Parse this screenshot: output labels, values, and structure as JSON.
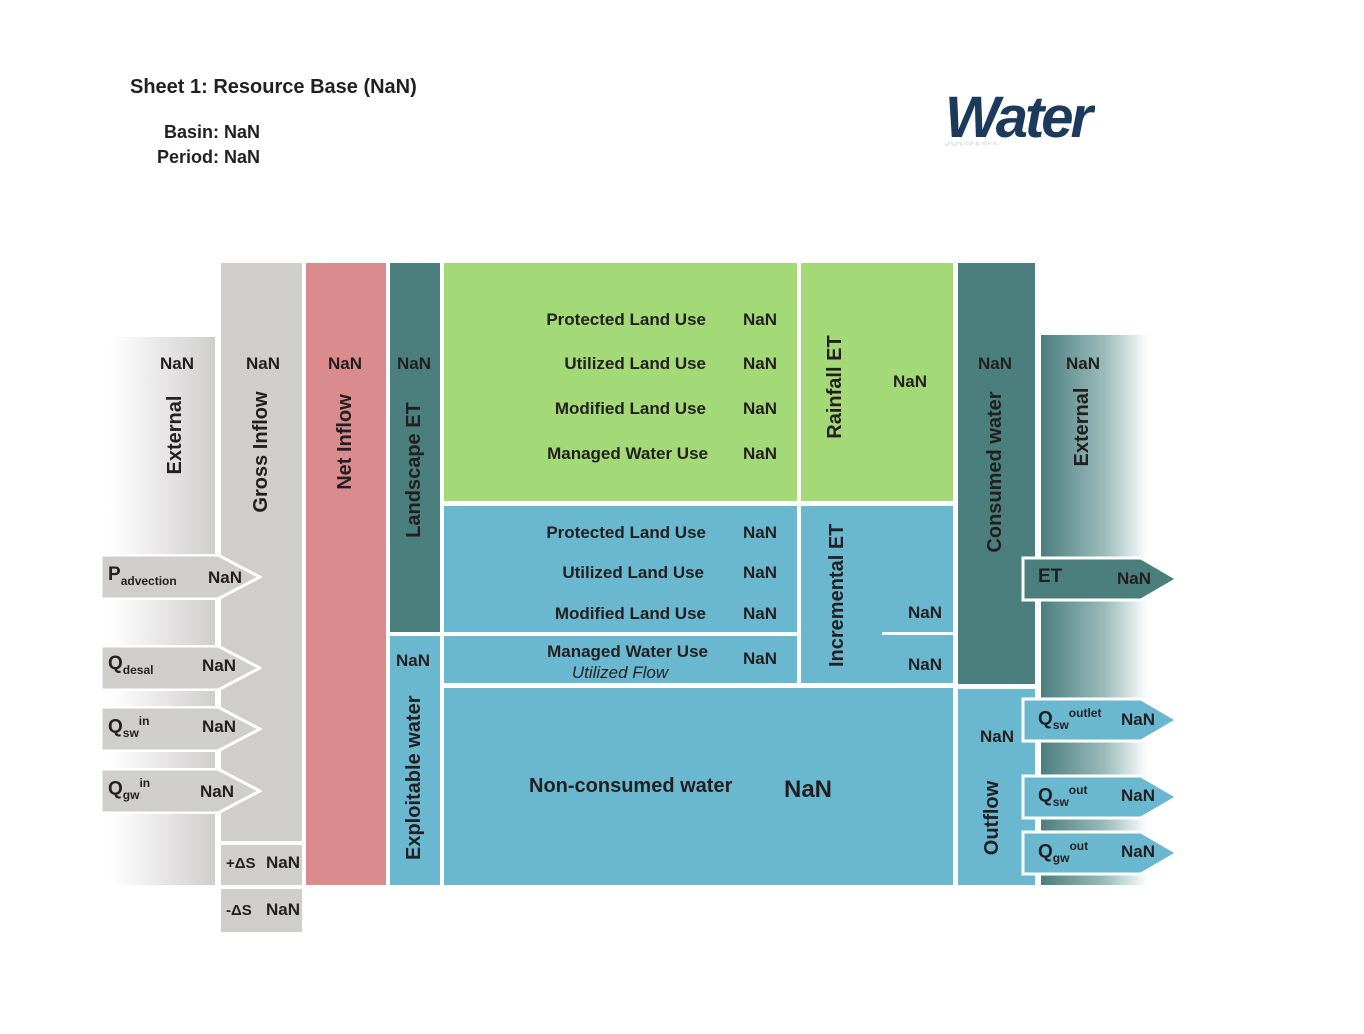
{
  "header": {
    "title": "Sheet 1: Resource Base (NaN)",
    "basin": "Basin: NaN",
    "period": "Period: NaN"
  },
  "logo": {
    "text": "Water",
    "subtext": "ACCOUNTING+"
  },
  "columns": {
    "external_in": {
      "label": "External",
      "value": "NaN"
    },
    "gross_inflow": {
      "label": "Gross Inflow",
      "value": "NaN"
    },
    "net_inflow": {
      "label": "Net Inflow",
      "value": "NaN"
    },
    "landscape_et": {
      "label": "Landscape ET",
      "value": "NaN"
    },
    "exploitable_water": {
      "label": "Exploitable water",
      "value": "NaN"
    },
    "consumed_water": {
      "label": "Consumed water",
      "value": "NaN"
    },
    "outflow": {
      "label": "Outflow",
      "value": "NaN"
    },
    "external_out": {
      "label": "External",
      "value": "NaN"
    }
  },
  "storage": {
    "plus_label": "+ΔS",
    "plus_value": "NaN",
    "minus_label": "-ΔS",
    "minus_value": "NaN"
  },
  "inflow_arrows": {
    "p_advection": {
      "main": "P",
      "sub": "advection",
      "value": "NaN"
    },
    "q_desal": {
      "main": "Q",
      "sub": "desal",
      "value": "NaN"
    },
    "q_sw_in": {
      "main": "Q",
      "sub": "sw",
      "sup": "in",
      "value": "NaN"
    },
    "q_gw_in": {
      "main": "Q",
      "sub": "gw",
      "sup": "in",
      "value": "NaN"
    }
  },
  "landscape_green": {
    "rows": [
      {
        "label": "Protected Land Use",
        "value": "NaN"
      },
      {
        "label": "Utilized Land Use",
        "value": "NaN"
      },
      {
        "label": "Modified Land Use",
        "value": "NaN"
      },
      {
        "label": "Managed Water Use",
        "value": "NaN"
      }
    ]
  },
  "rainfall_et": {
    "label": "Rainfall ET",
    "value": "NaN"
  },
  "landscape_blue": {
    "rows": [
      {
        "label": "Protected Land Use",
        "value": "NaN"
      },
      {
        "label": "Utilized Land Use",
        "value": "NaN"
      },
      {
        "label": "Modified Land Use",
        "value": "NaN"
      }
    ],
    "managed": {
      "label": "Managed Water Use",
      "sublabel": "Utilized Flow",
      "value": "NaN"
    }
  },
  "incremental_et": {
    "label": "Incremental ET",
    "value_upper": "NaN",
    "value_lower": "NaN"
  },
  "non_consumed": {
    "label": "Non-consumed water",
    "value": "NaN"
  },
  "outflow_arrows": {
    "et": {
      "main": "ET",
      "value": "NaN"
    },
    "q_sw_outlet": {
      "main": "Q",
      "sub": "sw",
      "sup": "outlet",
      "value": "NaN"
    },
    "q_sw_out": {
      "main": "Q",
      "sub": "sw",
      "sup": "out",
      "value": "NaN"
    },
    "q_gw_out": {
      "main": "Q",
      "sub": "gw",
      "sup": "out",
      "value": "NaN"
    }
  },
  "colors": {
    "grey": "#d0cdcd",
    "red": "#d98b8e",
    "teal": "#4a7f7e",
    "green": "#a3d977",
    "blue": "#6ab8cf",
    "logo": "#1b3a5c"
  }
}
